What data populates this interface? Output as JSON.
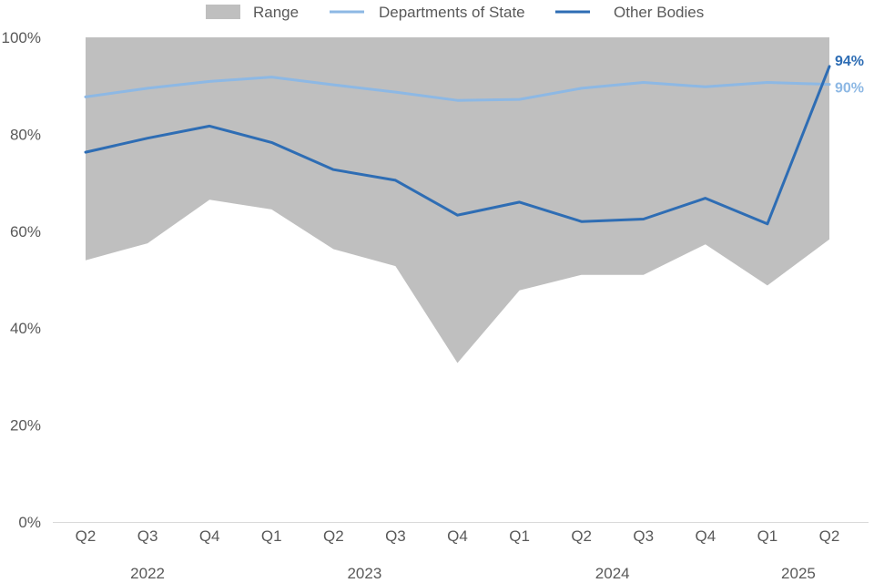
{
  "chart_data": {
    "type": "line",
    "title": "",
    "xlabel": "",
    "ylabel": "",
    "ylim": [
      0,
      100
    ],
    "y_ticks": [
      0,
      20,
      40,
      60,
      80,
      100
    ],
    "y_tick_labels": [
      "0%",
      "20%",
      "40%",
      "60%",
      "80%",
      "100%"
    ],
    "categories": [
      "Q2",
      "Q3",
      "Q4",
      "Q1",
      "Q2",
      "Q3",
      "Q4",
      "Q1",
      "Q2",
      "Q3",
      "Q4",
      "Q1",
      "Q2"
    ],
    "year_groups": [
      {
        "label": "2022",
        "start": 0,
        "end": 2
      },
      {
        "label": "2023",
        "start": 3,
        "end": 6
      },
      {
        "label": "2024",
        "start": 7,
        "end": 10
      },
      {
        "label": "2025",
        "start": 11,
        "end": 12
      }
    ],
    "range": {
      "name": "Range",
      "color": "#bfbfbf",
      "upper": [
        100,
        100,
        100,
        100,
        100,
        100,
        100,
        100,
        100,
        100,
        100,
        100,
        100
      ],
      "lower": [
        54,
        57.5,
        66.5,
        64.5,
        56.3,
        52.8,
        32.8,
        47.8,
        51,
        51,
        57.3,
        48.8,
        58.3
      ]
    },
    "series": [
      {
        "name": "Departments of State",
        "color": "#8db8e4",
        "values": [
          87.7,
          89.5,
          90.9,
          91.8,
          90.2,
          88.7,
          87,
          87.2,
          89.5,
          90.7,
          89.8,
          90.7,
          90.3
        ],
        "end_label": "90%"
      },
      {
        "name": "Other Bodies",
        "color": "#2e6db4",
        "values": [
          76.3,
          79.2,
          81.7,
          78.3,
          72.7,
          70.5,
          63.3,
          66,
          62,
          62.5,
          66.8,
          61.5,
          94
        ],
        "end_label": "94%"
      }
    ],
    "legend_position": "top-center",
    "grid": false
  }
}
